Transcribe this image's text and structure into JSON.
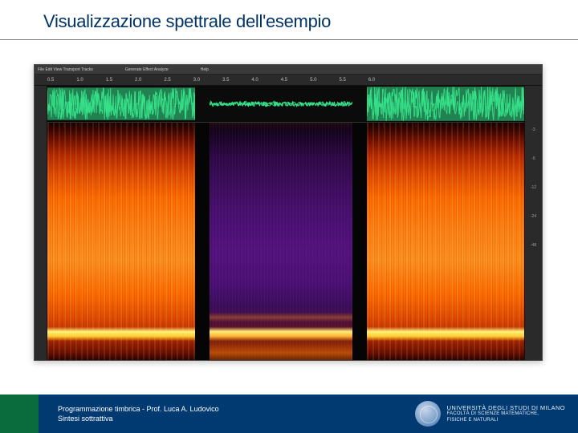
{
  "slide": {
    "title": "Visualizzazione spettrale dell'esempio"
  },
  "editor": {
    "menubar": {
      "left": "File  Edit  View  Transport  Tracks",
      "center": "Generate  Effect  Analyze",
      "right": "Help"
    },
    "ruler": {
      "ticks": [
        "0.5",
        "1.0",
        "1.5",
        "2.0",
        "2.5",
        "3.0",
        "3.5",
        "4.0",
        "4.5",
        "5.0",
        "5.5",
        "6.0"
      ]
    },
    "waveform": {
      "color": "#36e38b",
      "bg": "#0b0b0b",
      "segments": [
        {
          "kind": "noise",
          "widthPct": 31,
          "amp": 0.9
        },
        {
          "kind": "gap",
          "widthPct": 3
        },
        {
          "kind": "tone",
          "widthPct": 30,
          "amp": 0.16
        },
        {
          "kind": "gap",
          "widthPct": 3
        },
        {
          "kind": "noise",
          "widthPct": 33,
          "amp": 0.95
        }
      ]
    },
    "spectrogram": {
      "segments": [
        {
          "kind": "orange",
          "widthPct": 31
        },
        {
          "kind": "gap",
          "widthPct": 3
        },
        {
          "kind": "purple",
          "widthPct": 30
        },
        {
          "kind": "gap",
          "widthPct": 3
        },
        {
          "kind": "orange",
          "widthPct": 33
        }
      ]
    },
    "levelScale": [
      "-3",
      "-6",
      "-12",
      "-24",
      "-48"
    ]
  },
  "footer": {
    "line1": "Programmazione timbrica - Prof. Luca A. Ludovico",
    "line2": "Sintesi sottrattiva",
    "uni1": "UNIVERSITÀ DEGLI STUDI DI MILANO",
    "uni2": "FACOLTÀ DI SCIENZE MATEMATICHE,",
    "uni3": "FISICHE E NATURALI"
  }
}
